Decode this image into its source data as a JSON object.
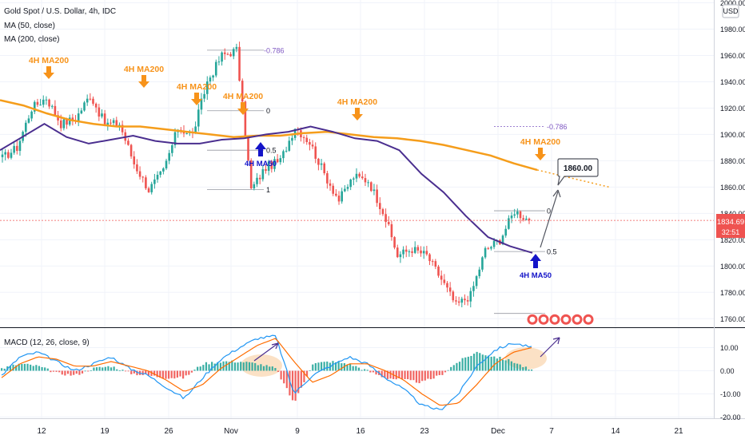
{
  "header": {
    "title": "Gold Spot / U.S. Dollar, 4h, IDC",
    "ma50": "MA (50, close)",
    "ma200": "MA (200, close)",
    "macd": "MACD (12, 26, close, 9)"
  },
  "price_scale": {
    "currency": "USD",
    "last_price": "1834.69",
    "countdown": "32:51",
    "target_label": "1860.00"
  },
  "colors": {
    "up": "#26a69a",
    "down": "#ef5350",
    "ma50": "#4a2e8f",
    "ma200": "#f59d1b",
    "annotation_orange": "#f7931a",
    "annotation_blue": "#1414c8",
    "fib": "#7e57c2",
    "macd_line": "#2196f3",
    "signal_line": "#ff6d00"
  },
  "annotations": {
    "ma200": [
      "4H MA200",
      "4H MA200",
      "4H MA200",
      "4H MA200",
      "4H MA200",
      "4H MA200"
    ],
    "ma50": [
      "4H MA50",
      "4H MA50"
    ],
    "fib1": [
      "-0.786",
      "0",
      "0.5",
      "1"
    ],
    "fib2": [
      "-0.786",
      "0",
      "0.5"
    ]
  },
  "chart_data": [
    {
      "type": "candlestick",
      "title": "Gold Spot / U.S. Dollar, 4h, IDC",
      "x_tick_labels": [
        "12",
        "19",
        "26",
        "Nov",
        "9",
        "16",
        "23",
        "Dec",
        "7",
        "14",
        "21"
      ],
      "y_tick_labels": [
        "2000.00",
        "1980.00",
        "1960.00",
        "1940.00",
        "1920.00",
        "1900.00",
        "1880.00",
        "1860.00",
        "1840.00",
        "1820.00",
        "1800.00",
        "1780.00",
        "1760.00"
      ],
      "ylim": [
        1755,
        2003
      ],
      "series": [
        {
          "name": "MA (50, close)",
          "values": [
            1888,
            1898,
            1908,
            1898,
            1893,
            1896,
            1899,
            1895,
            1893,
            1893,
            1896,
            1897,
            1900,
            1902,
            1906,
            1902,
            1897,
            1895,
            1888,
            1870,
            1856,
            1838,
            1822,
            1815,
            1810
          ]
        },
        {
          "name": "MA (200, close)",
          "values": [
            1926,
            1922,
            1916,
            1911,
            1908,
            1906,
            1906,
            1904,
            1902,
            1900,
            1898,
            1899,
            1899,
            1901,
            1902,
            1900,
            1898,
            1897,
            1895,
            1892,
            1888,
            1884,
            1878,
            1873
          ]
        }
      ],
      "key_points": [
        1882,
        1890,
        1920,
        1928,
        1908,
        1912,
        1930,
        1908,
        1908,
        1878,
        1858,
        1872,
        1905,
        1900,
        1940,
        1960,
        1964,
        1858,
        1875,
        1880,
        1906,
        1894,
        1870,
        1850,
        1868,
        1865,
        1842,
        1808,
        1813,
        1808,
        1790,
        1770,
        1778,
        1812,
        1820,
        1842,
        1834.69
      ]
    },
    {
      "type": "bar",
      "title": "MACD (12, 26, close, 9)",
      "y_tick_labels": [
        "10.00",
        "0.00",
        "-10.00",
        "-20.00"
      ],
      "ylim": [
        -20,
        16
      ],
      "series": [
        {
          "name": "MACD",
          "values": [
            -2,
            6,
            8,
            4,
            0,
            3,
            6,
            1,
            -2,
            -7,
            -12,
            -3,
            5,
            10,
            14,
            15,
            -10,
            -2,
            2,
            6,
            3,
            -3,
            -8,
            -15,
            -17,
            -10,
            2,
            9,
            12,
            10
          ]
        },
        {
          "name": "Signal",
          "values": [
            -3,
            3,
            6,
            5,
            2,
            2,
            4,
            2,
            0,
            -4,
            -9,
            -6,
            1,
            6,
            11,
            14,
            4,
            -5,
            -2,
            3,
            3,
            0,
            -4,
            -10,
            -15,
            -14,
            -6,
            3,
            8,
            10
          ]
        }
      ]
    }
  ]
}
